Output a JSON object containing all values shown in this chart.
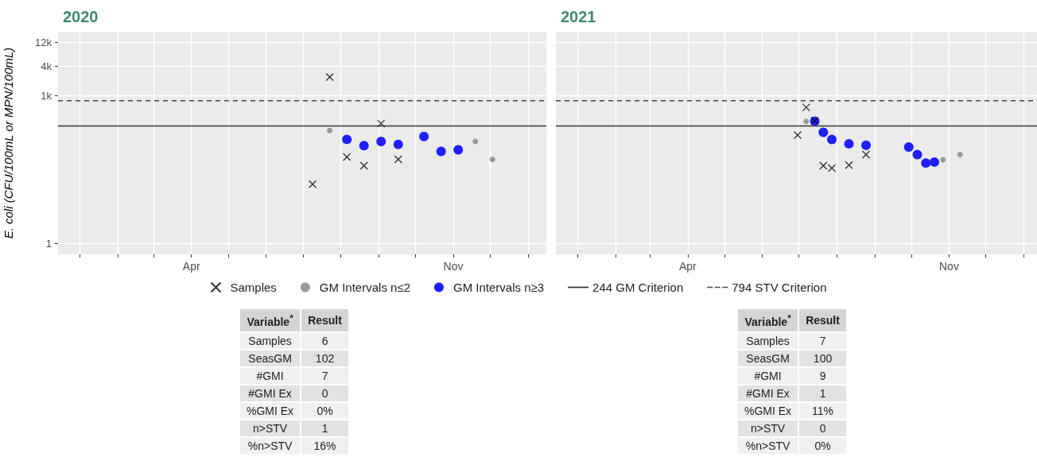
{
  "chart_data": [
    {
      "type": "scatter",
      "title": "2020",
      "ylabel": "E. coli (CFU/100mL or MPN/100mL)",
      "log": "y",
      "grid": true,
      "legend": "bottom",
      "xlim": [
        "2019-12-14",
        "2021-01-16"
      ],
      "xticks": [
        {
          "value": "2020-01",
          "label": null
        },
        {
          "value": "2020-02",
          "label": null
        },
        {
          "value": "2020-03",
          "label": null
        },
        {
          "value": "2020-04",
          "label": "Apr"
        },
        {
          "value": "2020-05",
          "label": null
        },
        {
          "value": "2020-06",
          "label": null
        },
        {
          "value": "2020-07",
          "label": null
        },
        {
          "value": "2020-08",
          "label": null
        },
        {
          "value": "2020-09",
          "label": null
        },
        {
          "value": "2020-10",
          "label": null
        },
        {
          "value": "2020-11",
          "label": "Nov"
        },
        {
          "value": "2020-12",
          "label": null
        },
        {
          "value": "2021-01",
          "label": null
        }
      ],
      "ylim": [
        0.6,
        20000
      ],
      "yticks": [
        1,
        {
          "value": 1000,
          "label": "1k"
        },
        {
          "value": 4000,
          "label": "4k"
        },
        {
          "value": 12000,
          "label": "12k"
        }
      ],
      "series": [
        {
          "name": "Samples",
          "color": "#000000",
          "marker": "cross",
          "x": [
            "2020-07-09",
            "2020-07-23",
            "2020-08-06",
            "2020-08-20",
            "2020-09-03",
            "2020-09-17"
          ],
          "values": [
            16,
            2400,
            57,
            38,
            274,
            51
          ]
        },
        {
          "name": "GM Intervals n≤2",
          "color": "#999999",
          "marker": "circle",
          "x": [
            "2020-07-23",
            "2020-11-19",
            "2020-12-03"
          ],
          "values": [
            197,
            118,
            51
          ]
        },
        {
          "name": "GM Intervals n≥3",
          "color": "#1f1fff",
          "marker": "circle",
          "x": [
            "2020-08-06",
            "2020-08-20",
            "2020-09-03",
            "2020-09-17",
            "2020-10-08",
            "2020-10-22",
            "2020-11-05"
          ],
          "values": [
            130,
            97,
            118,
            103,
            149,
            74,
            80
          ]
        }
      ],
      "ref_lines": [
        {
          "axis": "y",
          "value": 244,
          "label": "244 GM Criterion",
          "color": "#333333",
          "line_style": "solid"
        },
        {
          "axis": "y",
          "value": 794,
          "label": "794 STV Criterion",
          "color": "#444444",
          "line_style": "dashed"
        }
      ]
    },
    {
      "type": "scatter",
      "title": "2021",
      "log": "y",
      "grid": true,
      "tick_labels": "x",
      "xlim": [
        "2020-12-14",
        "2022-01-12"
      ],
      "xticks": [
        {
          "value": "2021-01",
          "label": null
        },
        {
          "value": "2021-02",
          "label": null
        },
        {
          "value": "2021-03",
          "label": null
        },
        {
          "value": "2021-04",
          "label": "Apr"
        },
        {
          "value": "2021-05",
          "label": null
        },
        {
          "value": "2021-06",
          "label": null
        },
        {
          "value": "2021-07",
          "label": null
        },
        {
          "value": "2021-08",
          "label": null
        },
        {
          "value": "2021-09",
          "label": null
        },
        {
          "value": "2021-10",
          "label": null
        },
        {
          "value": "2021-11",
          "label": "Nov"
        },
        {
          "value": "2021-12",
          "label": null
        },
        {
          "value": "2022-01",
          "label": null
        }
      ],
      "ylim": [
        0.6,
        20000
      ],
      "yticks": [
        {
          "value": 1,
          "label": null
        },
        {
          "value": 1000,
          "label": null
        },
        {
          "value": 4000,
          "label": null
        },
        {
          "value": 12000,
          "label": null
        }
      ],
      "series": [
        {
          "color": "#000000",
          "marker": "cross",
          "x": [
            "2021-06-30",
            "2021-07-07",
            "2021-07-14",
            "2021-07-21",
            "2021-07-28",
            "2021-08-11",
            "2021-08-25"
          ],
          "values": [
            159,
            582,
            311,
            38,
            34,
            39,
            64
          ]
        },
        {
          "color": "#999999",
          "marker": "circle",
          "x": [
            "2021-07-07",
            "2021-10-27",
            "2021-11-10"
          ],
          "values": [
            302,
            50,
            64
          ]
        },
        {
          "color": "#1f1fff",
          "marker": "circle",
          "x": [
            "2021-07-14",
            "2021-07-21",
            "2021-07-28",
            "2021-08-11",
            "2021-08-25",
            "2021-09-29",
            "2021-10-06",
            "2021-10-13",
            "2021-10-20"
          ],
          "values": [
            306,
            181,
            129,
            106,
            99,
            91,
            64,
            43,
            45
          ]
        }
      ],
      "ref_lines": [
        {
          "axis": "y",
          "value": 244,
          "color": "#333333",
          "line_style": "solid"
        },
        {
          "axis": "y",
          "value": 794,
          "color": "#444444",
          "line_style": "dashed"
        }
      ]
    },
    {
      "type": "other",
      "annotations": [
        "Variable$^{*}$",
        "Result",
        "Samples",
        "6",
        "SeasGM",
        "102",
        "#GMI",
        "7",
        "#GMI Ex",
        "0",
        "%GMI Ex",
        "0%",
        "n>STV",
        "1",
        "%n>STV",
        "16%"
      ]
    },
    {
      "type": "other",
      "annotations": [
        "Variable$^{*}$",
        "Result",
        "Samples",
        "7",
        "SeasGM",
        "100",
        "#GMI",
        "9",
        "#GMI Ex",
        "1",
        "%GMI Ex",
        "11%",
        "n>STV",
        "0",
        "%n>STV",
        "0%"
      ]
    }
  ]
}
